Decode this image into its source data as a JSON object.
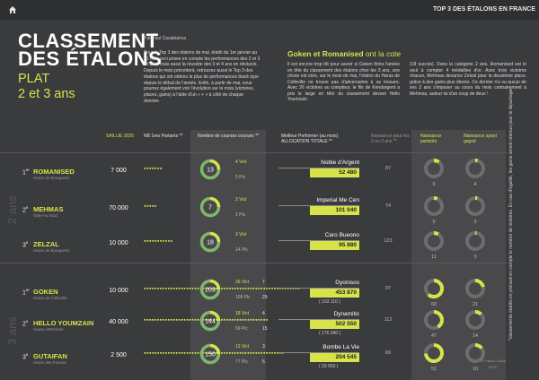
{
  "header": {
    "section": "TOP 3 DES ÉTALONS EN FRANCE"
  },
  "title": {
    "line1": "CLASSEMENT",
    "line2": "DES ÉTALONS",
    "sub1": "PLAT",
    "sub2": "2 et 3 ans"
  },
  "byline": "Par Paul Casabianca",
  "intro": "Pour le Top 3 des étalons de mai, établi du 1er janvier au 31 mai, ceci prises en compte les performances des 2 et 3 an plat, mais aussi la réussite des 3 et 4 ans en obstacle. Depuis le mois précédent, retrouvez aussi le Top 3 des étalons qui ont obtenu le plus de performances black type depuis le début de l'année. Enfin, à partir de mai, vous pourrez également voir l'évolution sur le mois (victoires, places, gains) à l'aide d'un « + » à côté de chaque donnée.",
  "article": {
    "title_bold": "Goken et Romanised",
    "title_rest": " ont la cote",
    "col1": "Il est encore trop tôt pour savoir si Goken finira l'année en tête du classement des étalons chez les 3 ans, une chose est sûre, sur le mois de mai, l'étalon du Haras de Colleville ne trouve pas d'adversaires à sa mesure. Avec 26 victoires au compteur, le fils de Kendargent a pris le large en tête du classement devant Hello Youmzain",
    "col2": "(18 succès). Dans la catégorie 2 ans, Romanised est le seul à compter 4 médailles d'or. Avec trois victoires chacun, Mehmas devance Zelzal pour la deuxième place, grâce à des gains plus élevés. Ce dernier n'a vu aucun de ses 2 ans s'imposer au cours du mois contrairement à Mehmas, auteur lui d'un coup de deux !"
  },
  "table": {
    "h_saillie": "SAILLIE 2025",
    "h_nbpartants": "NB 1ers Partants **",
    "h_courses": "Nombre de courses courues **",
    "h_perf": "Meilleur Performer (au mois) ALLOCATION TOTALE **",
    "h_naissance": "Naissance pour les 2 ou 3 ans **",
    "h_partants": "Naissance partants",
    "h_gagnants": "Naissance ayant gagné",
    "age2": "2 ans",
    "age3": "3 ans",
    "rows": [
      {
        "rank": "1",
        "sup": "er",
        "name": "ROMANISED",
        "breeder": "Haras de Bouquetot",
        "saillie": "7 000",
        "dots": "●●●●●●●",
        "courses": "13",
        "vict": "4 Vict",
        "plc": "5 Plc",
        "perf_name": "Noble d'Argent",
        "perf_gain": "52 480",
        "perf_paren": "",
        "naiss": "87",
        "partants": "9",
        "gagnants": "4"
      },
      {
        "rank": "2",
        "sup": "e",
        "name": "MEHMAS",
        "breeder": "Tally-Ho Stud",
        "saillie": "70 000",
        "dots": "●●●●●",
        "courses": "7",
        "vict": "3 Vict",
        "plc": "2 Plc",
        "perf_name": "Imperial Me Cen",
        "perf_gain": "101 040",
        "perf_paren": "",
        "naiss": "74",
        "partants": "5",
        "gagnants": "3"
      },
      {
        "rank": "3",
        "sup": "e",
        "name": "ZELZAL",
        "breeder": "Haras de Bouquetot",
        "saillie": "10 000",
        "dots": "●●●●●●●●●●●",
        "courses": "18",
        "vict": "3 Vict",
        "plc": "14 Plc",
        "perf_name": "Caro Bueono",
        "perf_gain": "95 880",
        "perf_paren": "",
        "naiss": "123",
        "partants": "11",
        "gagnants": "3"
      },
      {
        "rank": "1",
        "sup": "er",
        "name": "GOKEN",
        "breeder": "Haras de Colleville",
        "saillie": "10 000",
        "dots": "●●●●●●●●●●●●●●●●●●●●●●●●●●●●●●●●●●●●●●●●●●●●●●●●●●●●●●●●●●●",
        "courses": "209",
        "vict": "26 Vict",
        "plc": "109 Plc",
        "vict_m": "7",
        "plc_m": "29",
        "perf_name": "Dyonisos",
        "perf_gain": "453 870",
        "perf_paren": "( 103 110 )",
        "naiss": "97",
        "partants": "60",
        "gagnants": "21"
      },
      {
        "rank": "2",
        "sup": "e",
        "name": "HELLO YOUMZAIN",
        "breeder": "Haras d'Etreham",
        "saillie": "40 000",
        "dots": "●●●●●●●●●●●●●●●●●●●●●●●●●●●●●●●●●●●●●●●●●●●●●●●",
        "courses": "144",
        "vict": "18 Vict",
        "plc": "69 Plc",
        "vict_m": "4",
        "plc_m": "15",
        "perf_name": "Dynamitic",
        "perf_gain": "502 550",
        "perf_paren": "( 176 340 )",
        "naiss": "112",
        "partants": "47",
        "gagnants": "14"
      },
      {
        "rank": "3",
        "sup": "e",
        "name": "GUTAIFAN",
        "breeder": "Haras des Faunes",
        "saillie": "2 500",
        "dots": "●●●●●●●●●●●●●●●●●●●●●●●●●●●●●●●●●●●●●●●●●●●●●●●●●●●●●",
        "courses": "150",
        "vict": "13 Vict",
        "plc": "77 Plc",
        "vict_m": "3",
        "plc_m": "5",
        "perf_name": "Bombe La Vie",
        "perf_gain": "204 545",
        "perf_paren": "( 33 560 )",
        "naiss": "69",
        "partants": "51",
        "gagnants": "10"
      }
    ]
  },
  "sidenote": "*classements établis en prenant en compte le nombre de victoires. En cas d'égalité, les gains seront retenus pour le départager",
  "credit1": "© France Galop",
  "credit2": "IFCE",
  "colors": {
    "accent": "#d7e34a",
    "green": "#7fb86a",
    "bg": "#3a3b3d"
  }
}
